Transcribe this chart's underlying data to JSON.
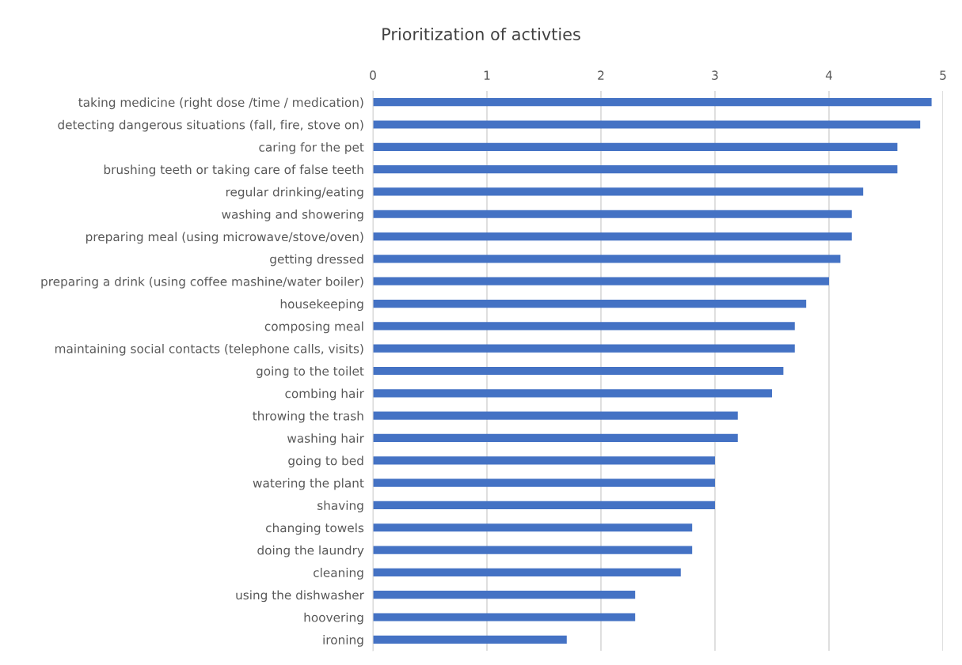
{
  "chart_data": {
    "type": "bar",
    "orientation": "horizontal",
    "title": "Prioritization of activties",
    "categories": [
      "taking medicine (right dose /time / medication)",
      "detecting dangerous situations (fall, fire, stove on)",
      "caring for the pet",
      "brushing teeth or taking care of false teeth",
      "regular drinking/eating",
      "washing and showering",
      "preparing meal (using microwave/stove/oven)",
      "getting dressed",
      "preparing a drink (using coffee mashine/water boiler)",
      "housekeeping",
      "composing meal",
      "maintaining social contacts (telephone calls, visits)",
      "going to the toilet",
      "combing hair",
      "throwing the trash",
      "washing hair",
      "going to bed",
      "watering the plant",
      "shaving",
      "changing towels",
      "doing the laundry",
      "cleaning",
      "using the dishwasher",
      "hoovering",
      "ironing"
    ],
    "values": [
      4.9,
      4.8,
      4.6,
      4.6,
      4.3,
      4.2,
      4.2,
      4.1,
      4.0,
      3.8,
      3.7,
      3.7,
      3.6,
      3.5,
      3.2,
      3.2,
      3.0,
      3.0,
      3.0,
      2.8,
      2.8,
      2.7,
      2.3,
      2.3,
      1.7
    ],
    "color": "#4472c4",
    "xlim": [
      0,
      5
    ],
    "xticks": [
      0,
      1,
      2,
      3,
      4,
      5
    ],
    "grid": "x",
    "legend": false
  }
}
